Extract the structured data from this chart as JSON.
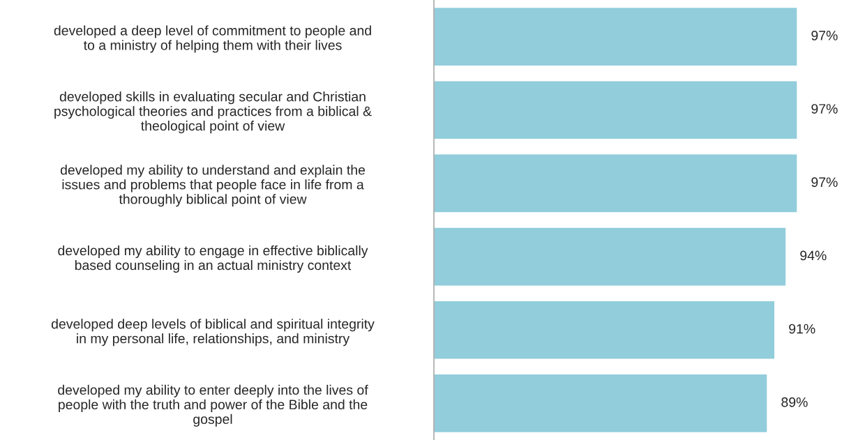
{
  "chart_data": {
    "type": "bar",
    "orientation": "horizontal",
    "categories": [
      "developed a deep level of commitment to people and\nto a ministry of helping them with their lives",
      "developed skills in evaluating secular and Christian\npsychological theories and practices from a biblical &\ntheological point of view",
      "developed my ability to understand and explain the\nissues and problems that people face in life from a\nthoroughly biblical point of view",
      "developed my ability to engage in effective biblically\nbased counseling in an actual ministry context",
      "developed deep levels of biblical and spiritual integrity\nin my personal life, relationships, and ministry",
      "developed my ability to enter deeply into the lives of\npeople with the truth and power of the Bible and the\ngospel"
    ],
    "values": [
      97,
      97,
      97,
      94,
      91,
      89
    ],
    "value_labels": [
      "97%",
      "97%",
      "97%",
      "94%",
      "91%",
      "89%"
    ],
    "color": "#92cddc",
    "tick_labels": "y",
    "grid": false,
    "legend": false
  }
}
